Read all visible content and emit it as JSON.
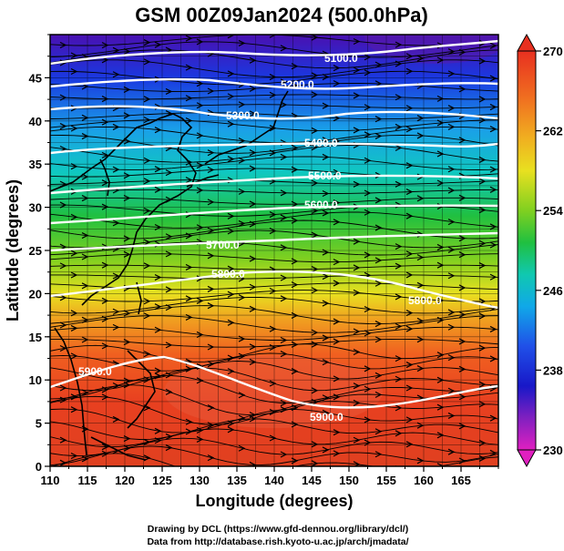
{
  "title": "GSM 00Z09Jan2024 (500.0hPa)",
  "xlabel": "Longitude (degrees)",
  "ylabel": "Latitude  (degrees)",
  "credits": {
    "line1": "Drawing by DCL (https://www.gfd-dennou.org/library/dcl/)",
    "line2": "Data from http://database.rish.kyoto-u.ac.jp/arch/jmadata/"
  },
  "x_ticks": [
    "110",
    "115",
    "120",
    "125",
    "130",
    "135",
    "140",
    "145",
    "150",
    "155",
    "160",
    "165"
  ],
  "y_ticks": [
    "0",
    "5",
    "10",
    "15",
    "20",
    "25",
    "30",
    "35",
    "40",
    "45"
  ],
  "colorbar": {
    "tick_labels": [
      "270",
      "262",
      "254",
      "246",
      "238",
      "230"
    ],
    "range": [
      230,
      270
    ]
  },
  "contour_labels": [
    "5100.0",
    "5200.0",
    "5300.0",
    "5400.0",
    "5500.0",
    "5600.0",
    "5700.0",
    "5800.0",
    "5800.0",
    "5900.0",
    "5900.0"
  ],
  "colors": {
    "frame": "#000000",
    "contour": "#ffffff"
  },
  "map": {
    "lon_range": [
      110,
      170
    ],
    "lat_range": [
      0,
      50
    ],
    "field": "500 hPa temperature (shading), geopotential height (white contours), wind (streamlines)"
  }
}
